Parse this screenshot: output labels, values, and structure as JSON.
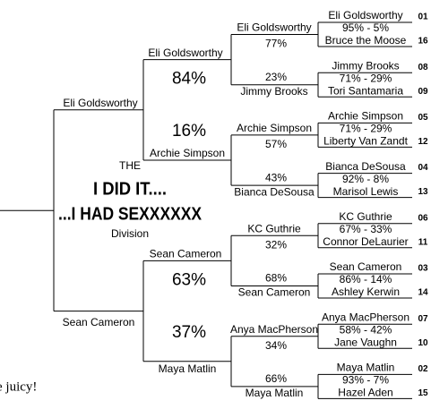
{
  "round1": [
    {
      "top": "Eli Goldsworthy",
      "top_seed": "01",
      "score": "95% - 5%",
      "bottom": "Bruce the Moose",
      "bottom_seed": "16"
    },
    {
      "top": "Jimmy Brooks",
      "top_seed": "08",
      "score": "71% - 29%",
      "bottom": "Tori Santamaria",
      "bottom_seed": "09"
    },
    {
      "top": "Archie Simpson",
      "top_seed": "05",
      "score": "71% - 29%",
      "bottom": "Liberty Van Zandt",
      "bottom_seed": "12"
    },
    {
      "top": "Bianca DeSousa",
      "top_seed": "04",
      "score": "92% - 8%",
      "bottom": "Marisol Lewis",
      "bottom_seed": "13"
    },
    {
      "top": "KC Guthrie",
      "top_seed": "06",
      "score": "67% - 33%",
      "bottom": "Connor DeLaurier",
      "bottom_seed": "11"
    },
    {
      "top": "Sean Cameron",
      "top_seed": "03",
      "score": "86% - 14%",
      "bottom": "Ashley Kerwin",
      "bottom_seed": "14"
    },
    {
      "top": "Anya MacPherson",
      "top_seed": "07",
      "score": "58% - 42%",
      "bottom": "Jane Vaughn",
      "bottom_seed": "10"
    },
    {
      "top": "Maya Matlin",
      "top_seed": "02",
      "score": "93% - 7%",
      "bottom": "Hazel Aden",
      "bottom_seed": "15"
    }
  ],
  "round2": [
    {
      "top": "Eli Goldsworthy",
      "top_pct": "77%",
      "bottom_pct": "23%",
      "bottom": "Jimmy Brooks"
    },
    {
      "top": "Archie Simpson",
      "top_pct": "57%",
      "bottom_pct": "43%",
      "bottom": "Bianca DeSousa"
    },
    {
      "top": "KC Guthrie",
      "top_pct": "32%",
      "bottom_pct": "68%",
      "bottom": "Sean Cameron"
    },
    {
      "top": "Anya MacPherson",
      "top_pct": "34%",
      "bottom_pct": "66%",
      "bottom": "Maya Matlin"
    }
  ],
  "round3": [
    {
      "top": "Eli Goldsworthy",
      "top_pct": "84%",
      "bottom_pct": "16%",
      "bottom": "Archie Simpson"
    },
    {
      "top": "Sean Cameron",
      "top_pct": "63%",
      "bottom_pct": "37%",
      "bottom": "Maya Matlin"
    }
  ],
  "final": {
    "top": "Eli Goldsworthy",
    "bottom": "Sean Cameron"
  },
  "center": {
    "line1": "THE",
    "line2": "I DID IT....",
    "line3": "...I HAD SEXXXXXX",
    "line4": "Division"
  },
  "footer": "e juicy!"
}
